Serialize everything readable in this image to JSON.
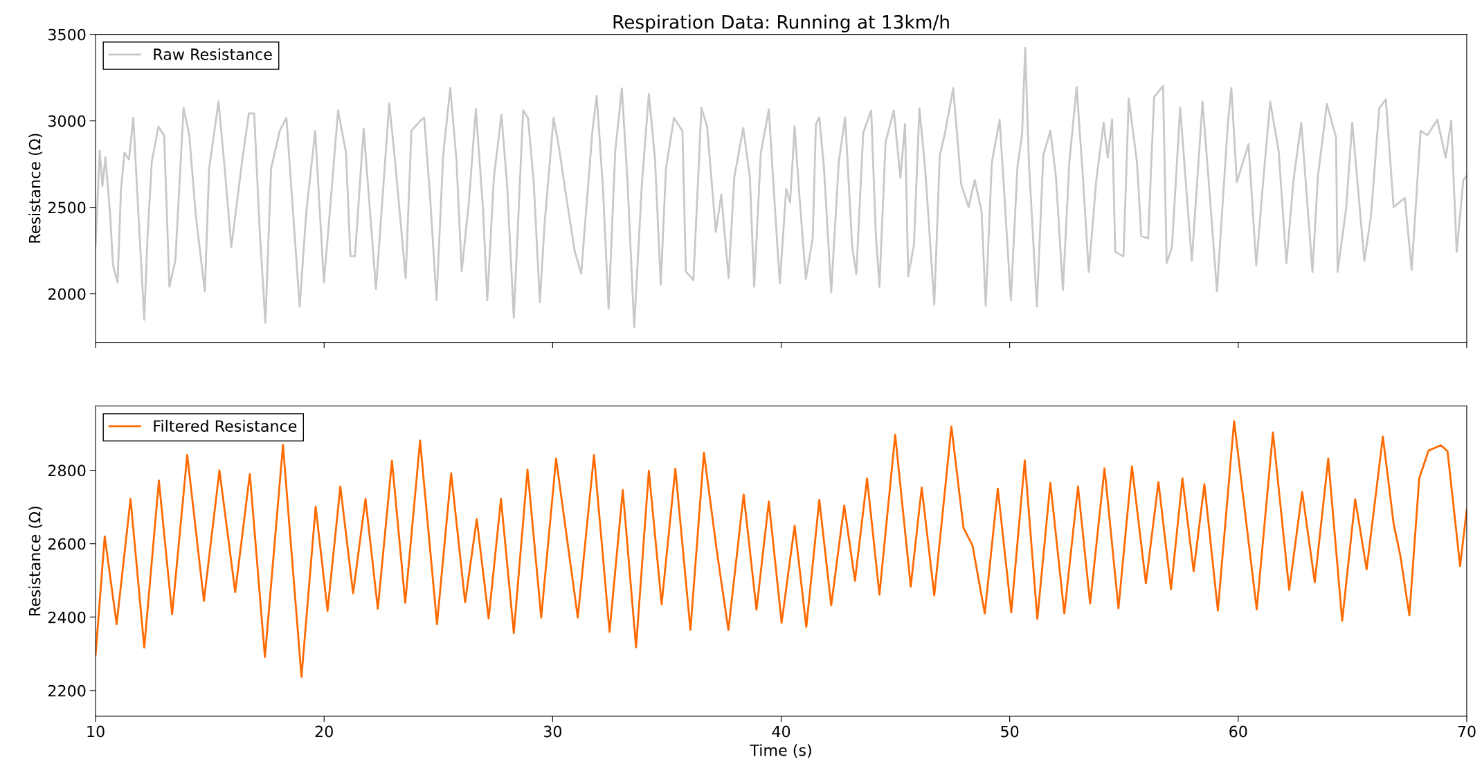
{
  "chart_data": [
    {
      "type": "line",
      "title": "Respiration Data: Running at 13km/h",
      "ylabel": "Resistance (Ω)",
      "xlim": [
        10,
        70
      ],
      "xticks": [
        10,
        20,
        30,
        40,
        50,
        60,
        70
      ],
      "ylim": [
        1720,
        3500
      ],
      "yticks": [
        2000,
        2500,
        3000,
        3500
      ],
      "tick_labels": "y",
      "legend": "top left",
      "grid": false,
      "series": [
        {
          "name": "Raw Resistance",
          "color": "#c8c8c8",
          "x": [
            10.0,
            10.18,
            10.3,
            10.43,
            10.63,
            10.76,
            10.96,
            11.11,
            11.26,
            11.46,
            11.65,
            11.88,
            12.13,
            12.27,
            12.46,
            12.75,
            13.0,
            13.23,
            13.49,
            13.85,
            14.1,
            14.39,
            14.78,
            14.97,
            15.38,
            15.65,
            15.94,
            16.42,
            16.71,
            16.94,
            17.19,
            17.43,
            17.68,
            18.06,
            18.35,
            18.64,
            18.93,
            19.22,
            19.61,
            19.99,
            20.28,
            20.61,
            20.96,
            21.15,
            21.35,
            21.73,
            22.27,
            22.6,
            22.85,
            23.08,
            23.57,
            23.82,
            24.2,
            24.38,
            24.63,
            24.92,
            25.21,
            25.52,
            25.79,
            26.02,
            26.33,
            26.64,
            26.95,
            27.14,
            27.43,
            27.76,
            28.01,
            28.3,
            28.71,
            28.92,
            29.17,
            29.44,
            29.65,
            30.04,
            30.27,
            30.58,
            30.97,
            31.25,
            31.74,
            31.93,
            32.2,
            32.45,
            32.74,
            33.03,
            33.28,
            33.57,
            33.9,
            34.21,
            34.48,
            34.73,
            34.96,
            35.31,
            35.68,
            35.83,
            36.16,
            36.51,
            36.76,
            37.14,
            37.38,
            37.7,
            37.95,
            38.34,
            38.63,
            38.82,
            39.11,
            39.46,
            39.69,
            39.94,
            40.22,
            40.39,
            40.59,
            40.79,
            41.08,
            41.38,
            41.52,
            41.67,
            41.87,
            42.19,
            42.52,
            42.8,
            43.11,
            43.29,
            43.59,
            43.94,
            44.14,
            44.3,
            44.57,
            44.93,
            45.22,
            45.42,
            45.56,
            45.81,
            46.05,
            46.31,
            46.7,
            46.94,
            47.15,
            47.53,
            47.88,
            48.2,
            48.47,
            48.77,
            48.95,
            49.22,
            49.56,
            49.75,
            50.05,
            50.34,
            50.54,
            50.68,
            50.84,
            51.19,
            51.47,
            51.78,
            52.02,
            52.33,
            52.61,
            52.93,
            53.2,
            53.46,
            53.79,
            54.11,
            54.29,
            54.48,
            54.62,
            54.98,
            55.21,
            55.57,
            55.76,
            56.06,
            56.32,
            56.71,
            56.87,
            57.1,
            57.46,
            57.73,
            57.97,
            58.44,
            58.78,
            59.07,
            59.55,
            59.7,
            59.94,
            60.45,
            60.79,
            61.08,
            61.4,
            61.77,
            62.11,
            62.42,
            62.76,
            63.25,
            63.49,
            63.88,
            64.28,
            64.35,
            64.73,
            64.99,
            65.52,
            65.81,
            66.17,
            66.46,
            66.8,
            67.29,
            67.59,
            67.98,
            68.28,
            68.71,
            69.08,
            69.32,
            69.56,
            69.85,
            70.0
          ],
          "values": [
            2282,
            2827,
            2624,
            2789,
            2472,
            2168,
            2066,
            2599,
            2815,
            2777,
            3018,
            2447,
            1850,
            2320,
            2764,
            2967,
            2916,
            2041,
            2193,
            3074,
            2916,
            2447,
            2015,
            2726,
            3112,
            2726,
            2269,
            2777,
            3043,
            3043,
            2345,
            1833,
            2726,
            2942,
            3018,
            2472,
            1926,
            2472,
            2942,
            2066,
            2523,
            3061,
            2815,
            2218,
            2218,
            2954,
            2028,
            2637,
            3102,
            2802,
            2091,
            2942,
            3000,
            3018,
            2574,
            1964,
            2802,
            3190,
            2777,
            2129,
            2523,
            3069,
            2497,
            1964,
            2675,
            3036,
            2624,
            1863,
            3061,
            3018,
            2650,
            1952,
            2409,
            3018,
            2853,
            2574,
            2244,
            2117,
            2942,
            3145,
            2612,
            1914,
            2827,
            3188,
            2637,
            1807,
            2624,
            3157,
            2777,
            2053,
            2726,
            3018,
            2942,
            2129,
            2079,
            3076,
            2967,
            2358,
            2574,
            2091,
            2675,
            2959,
            2675,
            2041,
            2815,
            3066,
            2574,
            2062,
            2606,
            2528,
            2968,
            2580,
            2087,
            2321,
            2981,
            3020,
            2735,
            2010,
            2761,
            3020,
            2269,
            2114,
            2930,
            3059,
            2347,
            2041,
            2878,
            3059,
            2671,
            2981,
            2101,
            2282,
            3072,
            2709,
            1938,
            2800,
            2917,
            3189,
            2632,
            2502,
            2658,
            2476,
            1932,
            2761,
            3007,
            2606,
            1964,
            2735,
            2917,
            3422,
            2761,
            1927,
            2800,
            2943,
            2683,
            2023,
            2761,
            3196,
            2683,
            2127,
            2658,
            2990,
            2787,
            3007,
            2243,
            2217,
            3129,
            2761,
            2334,
            2321,
            3137,
            3202,
            2178,
            2269,
            3077,
            2606,
            2191,
            3111,
            2528,
            2015,
            2990,
            3189,
            2645,
            2865,
            2165,
            2632,
            3111,
            2826,
            2178,
            2658,
            2990,
            2127,
            2683,
            3098,
            2904,
            2127,
            2502,
            2990,
            2191,
            2450,
            3072,
            3124,
            2502,
            2554,
            2139,
            2943,
            2917,
            3007,
            2787,
            3002,
            2243,
            2658,
            2683
          ]
        }
      ]
    },
    {
      "type": "line",
      "xlabel": "Time (s)",
      "ylabel": "Resistance (Ω)",
      "xlim": [
        10,
        70
      ],
      "xticks": [
        10,
        20,
        30,
        40,
        50,
        60,
        70
      ],
      "ylim": [
        2130,
        2975
      ],
      "yticks": [
        2200,
        2400,
        2600,
        2800
      ],
      "legend": "top left",
      "grid": false,
      "series": [
        {
          "name": "Filtered Resistance",
          "color": "#ff6a00",
          "x": [
            10.0,
            10.4,
            10.92,
            11.53,
            12.13,
            12.77,
            13.35,
            14.01,
            14.74,
            15.42,
            16.11,
            16.75,
            17.41,
            18.2,
            19.01,
            19.63,
            20.15,
            20.71,
            21.27,
            21.81,
            22.35,
            22.97,
            23.55,
            24.2,
            24.94,
            25.56,
            26.17,
            26.68,
            27.2,
            27.74,
            28.3,
            28.9,
            29.5,
            30.15,
            31.1,
            31.81,
            32.49,
            33.07,
            33.65,
            34.21,
            34.77,
            35.37,
            36.03,
            36.62,
            37.19,
            37.69,
            38.36,
            38.92,
            39.46,
            40.02,
            40.59,
            41.1,
            41.67,
            42.19,
            42.76,
            43.23,
            43.76,
            44.3,
            44.99,
            45.67,
            46.15,
            46.7,
            47.45,
            47.98,
            48.37,
            48.91,
            49.48,
            50.07,
            50.66,
            51.21,
            51.78,
            52.39,
            52.99,
            53.52,
            54.15,
            54.76,
            55.35,
            55.96,
            56.51,
            57.06,
            57.56,
            58.05,
            58.52,
            59.11,
            59.82,
            60.81,
            61.52,
            62.23,
            62.8,
            63.35,
            63.94,
            64.55,
            65.12,
            65.62,
            66.33,
            66.8,
            67.09,
            67.49,
            67.92,
            68.33,
            68.87,
            69.16,
            69.71,
            70.0
          ],
          "values": [
            2297,
            2620,
            2381,
            2722,
            2317,
            2772,
            2408,
            2842,
            2444,
            2800,
            2468,
            2790,
            2291,
            2869,
            2237,
            2701,
            2417,
            2756,
            2465,
            2722,
            2423,
            2826,
            2439,
            2881,
            2381,
            2792,
            2441,
            2667,
            2396,
            2722,
            2357,
            2802,
            2399,
            2832,
            2399,
            2842,
            2360,
            2746,
            2318,
            2799,
            2435,
            2804,
            2365,
            2848,
            2578,
            2365,
            2734,
            2420,
            2715,
            2385,
            2649,
            2373,
            2720,
            2432,
            2704,
            2499,
            2778,
            2461,
            2897,
            2483,
            2753,
            2459,
            2919,
            2643,
            2596,
            2410,
            2750,
            2413,
            2827,
            2395,
            2766,
            2410,
            2756,
            2437,
            2805,
            2424,
            2811,
            2492,
            2768,
            2476,
            2778,
            2525,
            2762,
            2418,
            2934,
            2421,
            2903,
            2474,
            2741,
            2495,
            2832,
            2390,
            2721,
            2530,
            2892,
            2655,
            2569,
            2405,
            2778,
            2854,
            2868,
            2852,
            2539,
            2692
          ]
        }
      ]
    }
  ]
}
